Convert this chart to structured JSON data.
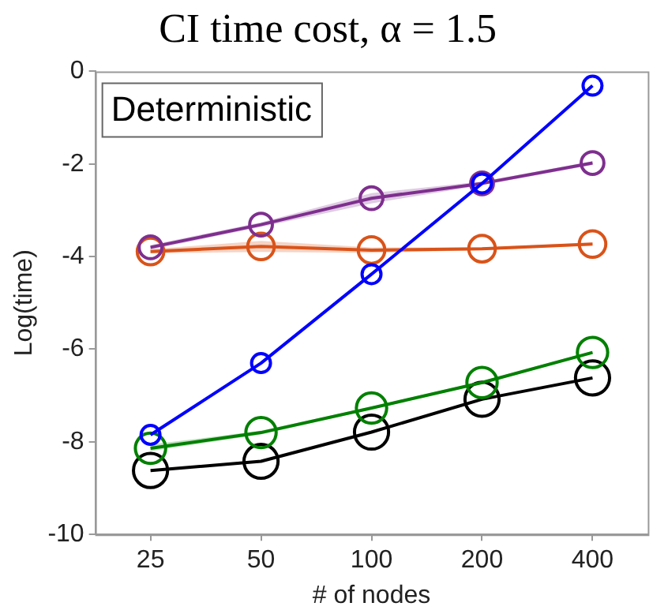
{
  "chart_data": {
    "type": "line",
    "title": "CI time cost, α = 1.5",
    "xlabel": "# of nodes",
    "ylabel": "Log(time)",
    "annotations": [
      "Deterministic"
    ],
    "categories": [
      "25",
      "50",
      "100",
      "200",
      "400"
    ],
    "series": [
      {
        "color": "#0000ff",
        "values": [
          -7.85,
          -6.3,
          -4.38,
          -2.42,
          -0.31
        ]
      },
      {
        "color": "#7e2f8e",
        "values": [
          -3.8,
          -3.31,
          -2.74,
          -2.42,
          -1.98
        ],
        "lower": [
          -3.85,
          -3.36,
          -2.85,
          -2.46,
          -2.02
        ],
        "upper": [
          -3.75,
          -3.26,
          -2.63,
          -2.38,
          -1.94
        ]
      },
      {
        "color": "#d95319",
        "values": [
          -3.89,
          -3.78,
          -3.86,
          -3.83,
          -3.73
        ],
        "lower": [
          -3.93,
          -3.9,
          -3.92,
          -3.86,
          -3.76
        ],
        "upper": [
          -3.84,
          -3.66,
          -3.8,
          -3.8,
          -3.7
        ]
      },
      {
        "color": "#008000",
        "values": [
          -8.14,
          -7.8,
          -7.27,
          -6.72,
          -6.07
        ],
        "lower": [
          -8.2,
          -7.84,
          -7.3,
          -6.75,
          -6.1
        ],
        "upper": [
          -8.06,
          -7.76,
          -7.24,
          -6.69,
          -6.04
        ]
      },
      {
        "color": "#000000",
        "values": [
          -8.62,
          -8.42,
          -7.79,
          -7.08,
          -6.62
        ]
      }
    ],
    "ylim": [
      -10,
      0
    ],
    "yticks": [
      -10,
      -8,
      -6,
      -4,
      -2,
      0
    ],
    "grid": false,
    "legend": false,
    "marker": "circle",
    "line_style": "solid"
  }
}
